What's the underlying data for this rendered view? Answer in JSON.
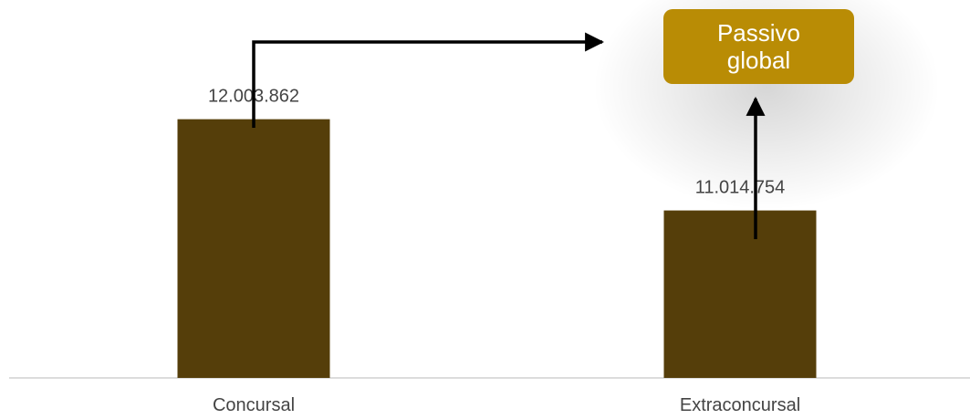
{
  "chart_data": {
    "type": "bar",
    "title": "",
    "xlabel": "",
    "ylabel": "",
    "categories": [
      "Concursal",
      "Extraconcursal"
    ],
    "values": [
      12003862,
      11014754
    ],
    "value_labels": [
      "12.003.862",
      "11.014.754"
    ],
    "ylim": [
      9200000,
      12900000
    ],
    "grid": false,
    "legend": "none",
    "bar_color": "#553e0a",
    "callout": {
      "text_line1": "Passivo",
      "text_line2": "global",
      "color": "#b98c05"
    }
  }
}
